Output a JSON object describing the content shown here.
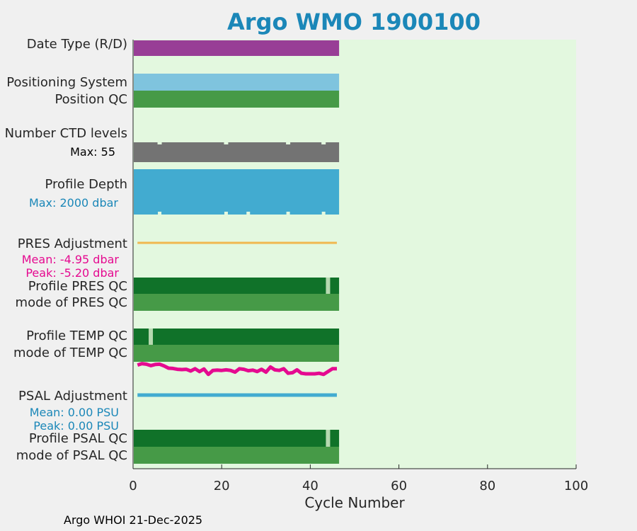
{
  "colors": {
    "title": "#1b87b8",
    "panel_bg": "#e3f8df",
    "date_type": "#983e96",
    "positioning": "#7fc4de",
    "qc_green": "#469a47",
    "qc_dark": "#107229",
    "qc_light": "#b6d9b0",
    "ctd": "#737373",
    "depth": "#42abd0",
    "pres_line": "#f0b84f",
    "pink": "#e50a90",
    "psal_line": "#42abd0",
    "cyan_text": "#1b87b8"
  },
  "chart_data": {
    "type": "bar",
    "title": "Argo WMO 1900100",
    "xlabel": "Cycle Number",
    "xlim": [
      0,
      100
    ],
    "xticks": [
      0,
      20,
      40,
      60,
      80,
      100
    ],
    "n_cycles": 46,
    "rows": [
      {
        "label": "Date Type (R/D)"
      },
      {
        "label": "Positioning System"
      },
      {
        "label": "Position QC"
      },
      {
        "label": "Number CTD levels",
        "note": "Max: 55"
      },
      {
        "label": "Profile Depth",
        "note": "Max: 2000 dbar"
      },
      {
        "label": "PRES Adjustment",
        "note_mean": "Mean: -4.95 dbar",
        "note_peak": "Peak: -5.20 dbar"
      },
      {
        "label": "Profile PRES QC"
      },
      {
        "label": "mode of PRES QC"
      },
      {
        "label": "Profile TEMP QC"
      },
      {
        "label": "mode of TEMP QC"
      },
      {
        "label": "PSAL Adjustment",
        "note_mean": "Mean: 0.00 PSU",
        "note_peak": "Peak: 0.00 PSU"
      },
      {
        "label": "Profile PSAL QC"
      },
      {
        "label": "mode of PSAL QC"
      }
    ],
    "ctd_gap_cycles": [
      6,
      21,
      35,
      43
    ],
    "depth_gap_cycles": [
      6,
      21,
      26,
      35,
      43
    ],
    "pres_qc_light_cycles": [
      44
    ],
    "temp_qc_light_cycles": [
      4
    ],
    "psal_qc_light_cycles": [
      44
    ],
    "temp_wave": [
      0.55,
      0.8,
      0.7,
      0.45,
      0.65,
      0.7,
      0.4,
      0.0,
      -0.05,
      -0.2,
      -0.25,
      -0.2,
      -0.5,
      -0.1,
      -0.6,
      -0.15,
      -1.1,
      -0.4,
      -0.35,
      -0.4,
      -0.3,
      -0.4,
      -0.7,
      -0.1,
      -0.2,
      -0.45,
      -0.35,
      -0.6,
      -0.2,
      -0.7,
      0.2,
      -0.3,
      -0.4,
      -0.1,
      -0.9,
      -0.8,
      -0.3,
      -0.9,
      -1.0,
      -1.0,
      -1.0,
      -0.9,
      -1.1,
      -0.6,
      -0.1,
      -0.1
    ]
  },
  "footer": "Argo WHOI 21-Dec-2025"
}
